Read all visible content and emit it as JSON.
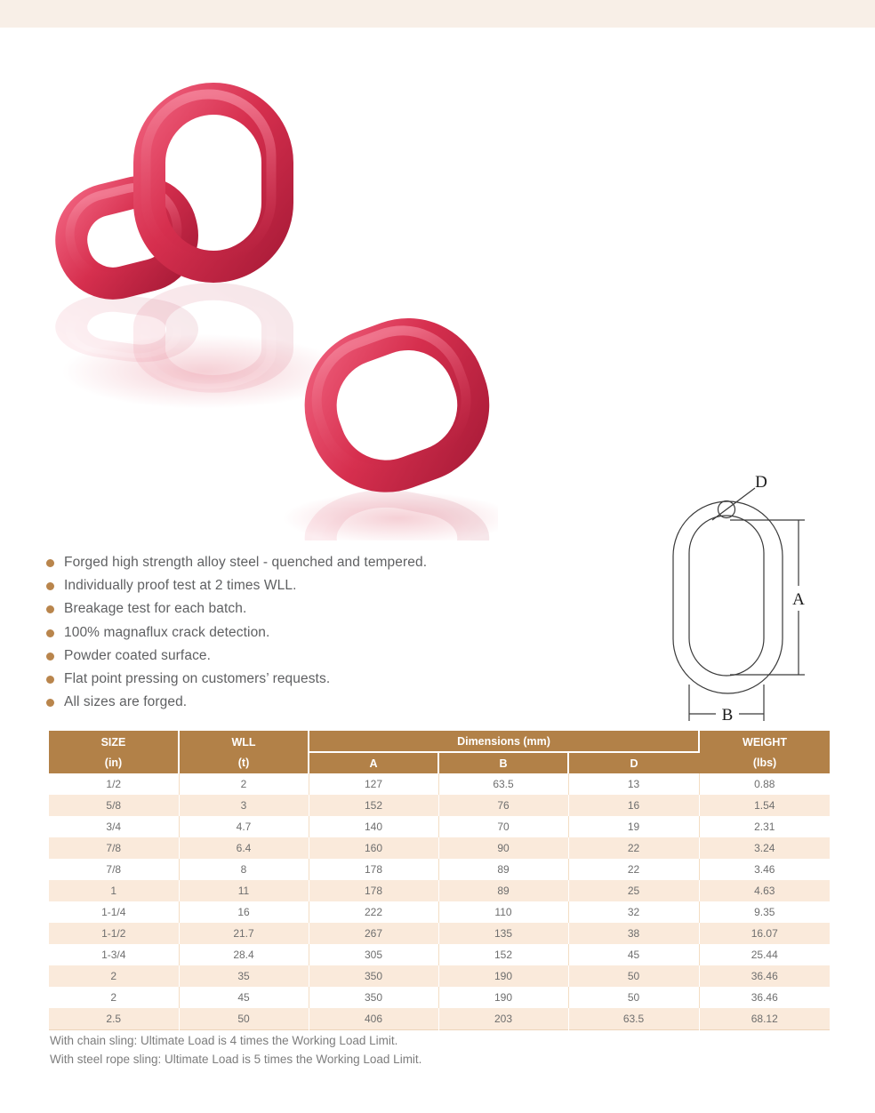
{
  "features": {
    "items": [
      "Forged high strength alloy steel - quenched and tempered.",
      "Individually proof test at 2 times WLL.",
      "Breakage test for each batch.",
      "100% magnaflux crack detection.",
      "Powder coated surface.",
      "Flat point pressing on customers’ requests.",
      "All sizes are forged."
    ]
  },
  "diagram": {
    "label_a": "A",
    "label_b": "B",
    "label_d": "D"
  },
  "table": {
    "header": {
      "size": "SIZE",
      "size_unit": "(in)",
      "wll": "WLL",
      "wll_unit": "(t)",
      "dimensions": "Dimensions (mm)",
      "dim_a": "A",
      "dim_b": "B",
      "dim_d": "D",
      "weight": "WEIGHT",
      "weight_unit": "(lbs)"
    },
    "rows": [
      [
        "1/2",
        "2",
        "127",
        "63.5",
        "13",
        "0.88"
      ],
      [
        "5/8",
        "3",
        "152",
        "76",
        "16",
        "1.54"
      ],
      [
        "3/4",
        "4.7",
        "140",
        "70",
        "19",
        "2.31"
      ],
      [
        "7/8",
        "6.4",
        "160",
        "90",
        "22",
        "3.24"
      ],
      [
        "7/8",
        "8",
        "178",
        "89",
        "22",
        "3.46"
      ],
      [
        "1",
        "11",
        "178",
        "89",
        "25",
        "4.63"
      ],
      [
        "1-1/4",
        "16",
        "222",
        "110",
        "32",
        "9.35"
      ],
      [
        "1-1/2",
        "21.7",
        "267",
        "135",
        "38",
        "16.07"
      ],
      [
        "1-3/4",
        "28.4",
        "305",
        "152",
        "45",
        "25.44"
      ],
      [
        "2",
        "35",
        "350",
        "190",
        "50",
        "36.46"
      ],
      [
        "2",
        "45",
        "350",
        "190",
        "50",
        "36.46"
      ],
      [
        "2.5",
        "50",
        "406",
        "203",
        "63.5",
        "68.12"
      ]
    ]
  },
  "notes": {
    "chain": "With chain sling: Ultimate Load is 4 times the Working Load Limit.",
    "rope": "With steel rope sling: Ultimate Load is 5 times the Working Load Limit."
  },
  "colors": {
    "accent_brown": "#b28148",
    "row_stripe": "#faeadb",
    "top_band": "#f8efe7",
    "link_red": "#d62f4e"
  }
}
